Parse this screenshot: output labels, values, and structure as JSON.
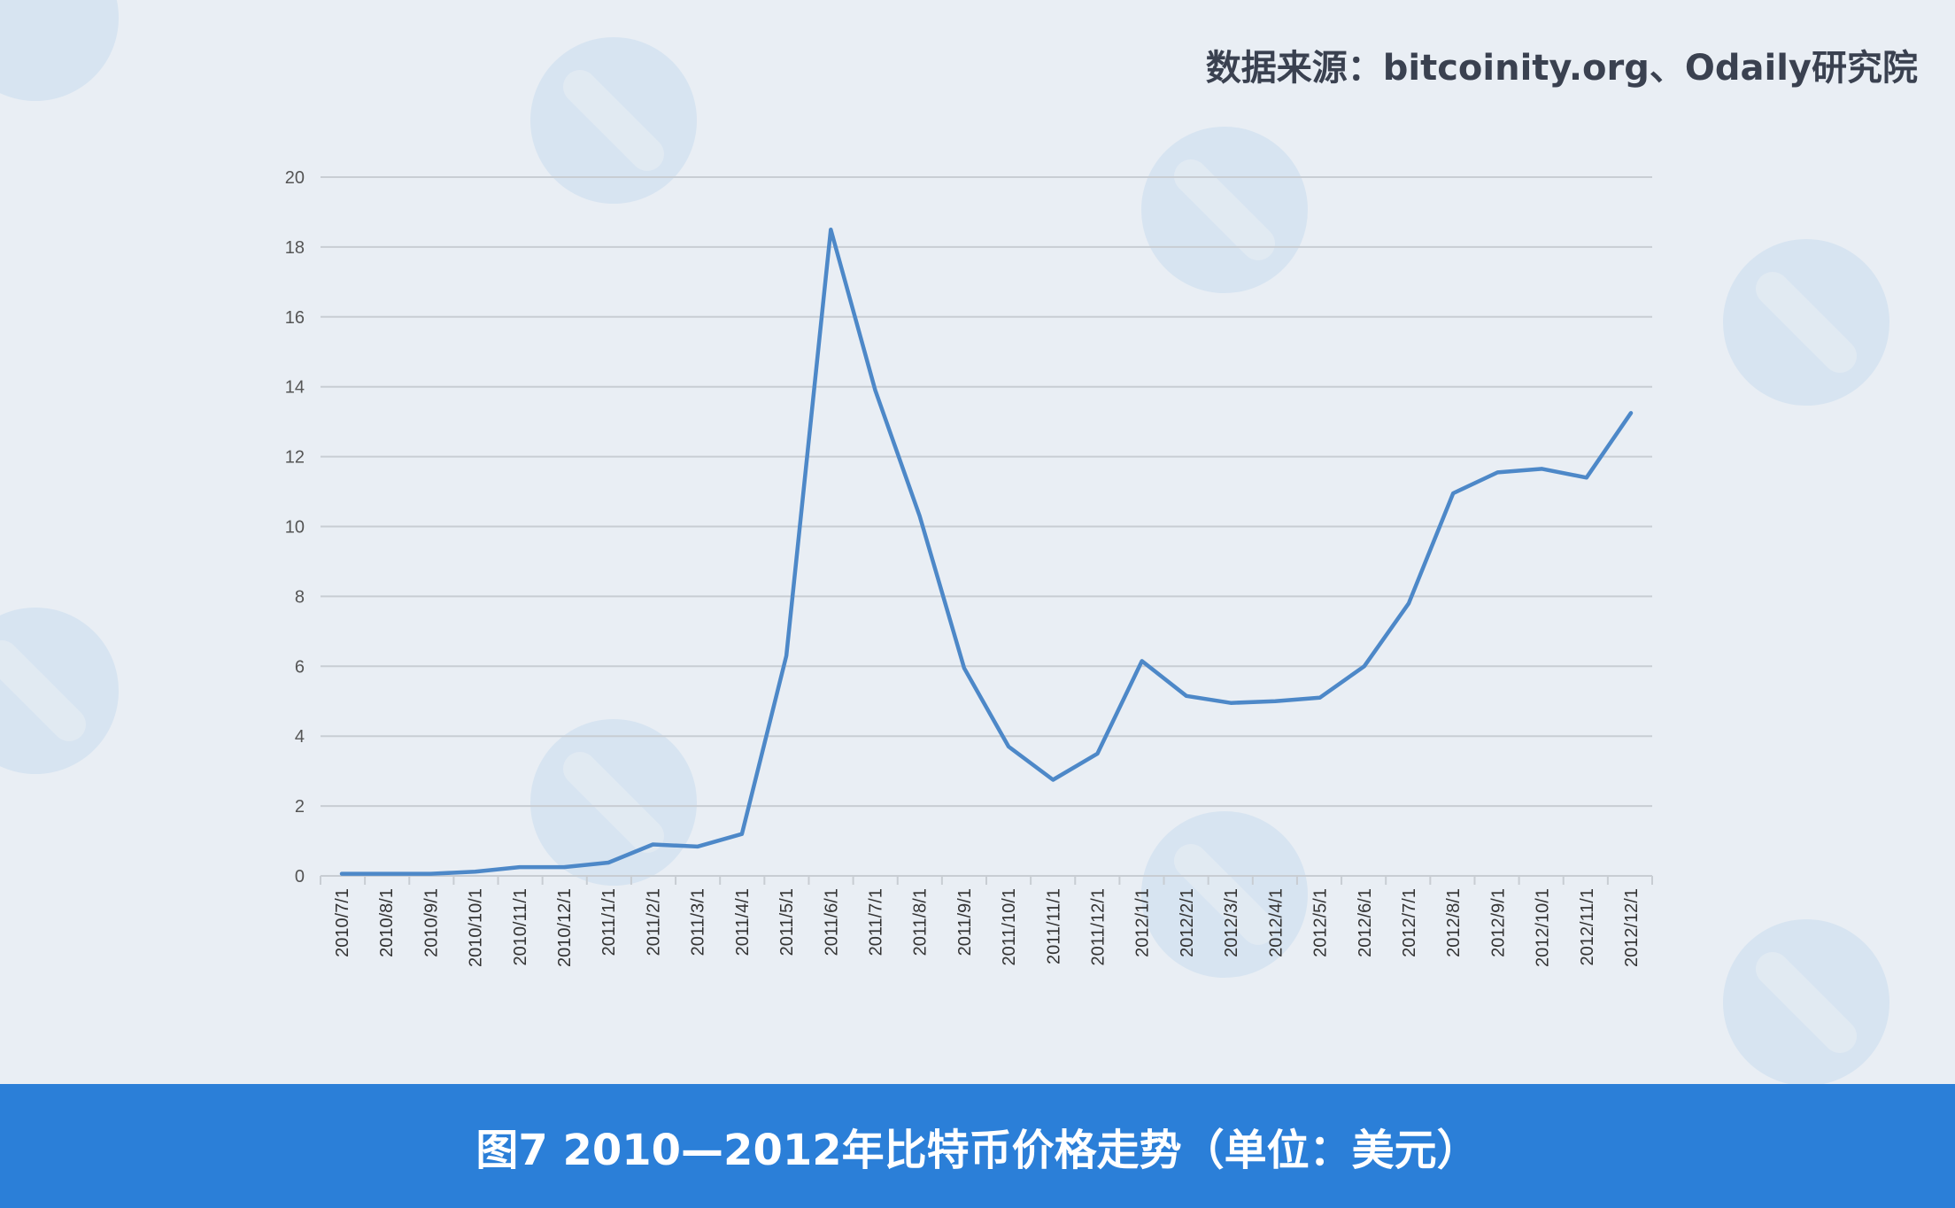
{
  "source_text": "数据来源：bitcoinity.org、Odaily研究院",
  "caption": "图7  2010—2012年比特币价格走势（单位：美元）",
  "colors": {
    "line": "#4d88c8",
    "footer": "#2b7fd8",
    "grid": "#c8cdd3"
  },
  "chart_data": {
    "type": "line",
    "title": "",
    "xlabel": "",
    "ylabel": "",
    "ylim": [
      0,
      20
    ],
    "yticks": [
      0,
      2,
      4,
      6,
      8,
      10,
      12,
      14,
      16,
      18,
      20
    ],
    "grid": true,
    "categories": [
      "2010/7/1",
      "2010/8/1",
      "2010/9/1",
      "2010/10/1",
      "2010/11/1",
      "2010/12/1",
      "2011/1/1",
      "2011/2/1",
      "2011/3/1",
      "2011/4/1",
      "2011/5/1",
      "2011/6/1",
      "2011/7/1",
      "2011/8/1",
      "2011/9/1",
      "2011/10/1",
      "2011/11/1",
      "2011/12/1",
      "2012/1/1",
      "2012/2/1",
      "2012/3/1",
      "2012/4/1",
      "2012/5/1",
      "2012/6/1",
      "2012/7/1",
      "2012/8/1",
      "2012/9/1",
      "2012/10/1",
      "2012/11/1",
      "2012/12/1"
    ],
    "values": [
      0.06,
      0.06,
      0.06,
      0.12,
      0.25,
      0.25,
      0.38,
      0.9,
      0.84,
      1.2,
      6.3,
      18.5,
      13.9,
      10.3,
      5.95,
      3.7,
      2.75,
      3.5,
      6.15,
      5.15,
      4.95,
      5.0,
      5.1,
      6.0,
      7.8,
      10.95,
      11.55,
      11.65,
      11.4,
      13.25
    ]
  }
}
